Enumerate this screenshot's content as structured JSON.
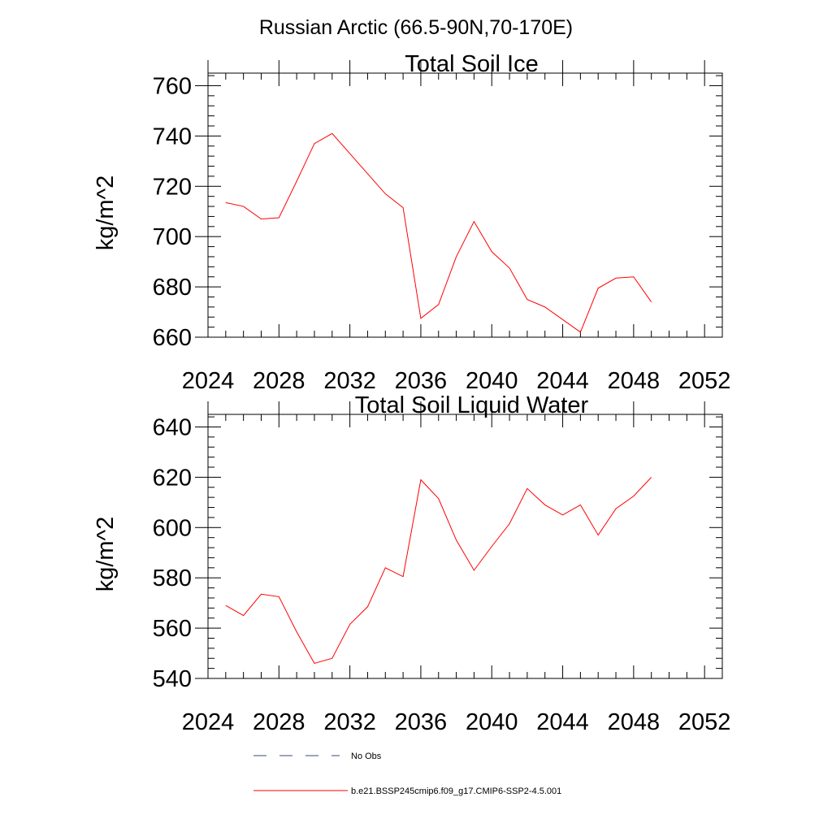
{
  "figure": {
    "title": "Russian Arctic (66.5-90N,70-170E)"
  },
  "colors": {
    "series_line": "#ff0000",
    "obs_line": "#3a4a7a",
    "axis": "#000000",
    "background": "#ffffff"
  },
  "chart_data": [
    {
      "type": "line",
      "title": "Total Soil Ice",
      "xlabel": "",
      "ylabel": "kg/m^2",
      "xlim": [
        2024,
        2053
      ],
      "ylim": [
        660,
        765
      ],
      "x_ticks": [
        2024,
        2028,
        2032,
        2036,
        2040,
        2044,
        2048,
        2052
      ],
      "y_ticks": [
        660,
        680,
        700,
        720,
        740,
        760
      ],
      "grid": false,
      "series": [
        {
          "name": "b.e21.BSSP245cmip6.f09_g17.CMIP6-SSP2-4.5.001",
          "x": [
            2025,
            2026,
            2027,
            2028,
            2029,
            2030,
            2031,
            2032,
            2033,
            2034,
            2035,
            2036,
            2037,
            2038,
            2039,
            2040,
            2041,
            2042,
            2043,
            2044,
            2045,
            2046,
            2047,
            2048,
            2049
          ],
          "values": [
            713.5,
            712,
            707,
            707.5,
            722,
            737,
            741,
            733,
            725,
            717,
            711.5,
            667.5,
            673,
            692,
            706,
            694,
            687.5,
            675,
            672,
            667,
            662,
            679.5,
            683.5,
            684,
            674
          ]
        }
      ]
    },
    {
      "type": "line",
      "title": "Total Soil Liquid Water",
      "xlabel": "",
      "ylabel": "kg/m^2",
      "xlim": [
        2024,
        2053
      ],
      "ylim": [
        540,
        645
      ],
      "x_ticks": [
        2024,
        2028,
        2032,
        2036,
        2040,
        2044,
        2048,
        2052
      ],
      "y_ticks": [
        540,
        560,
        580,
        600,
        620,
        640
      ],
      "grid": false,
      "series": [
        {
          "name": "b.e21.BSSP245cmip6.f09_g17.CMIP6-SSP2-4.5.001",
          "x": [
            2025,
            2026,
            2027,
            2028,
            2029,
            2030,
            2031,
            2032,
            2033,
            2034,
            2035,
            2036,
            2037,
            2038,
            2039,
            2040,
            2041,
            2042,
            2043,
            2044,
            2045,
            2046,
            2047,
            2048,
            2049
          ],
          "values": [
            569,
            565,
            573.5,
            572.5,
            558.5,
            546,
            548,
            561.5,
            568.5,
            584,
            580.5,
            619,
            611.5,
            595,
            583,
            592.5,
            601.5,
            615.5,
            609,
            605,
            609,
            597,
            607.5,
            612.5,
            620
          ]
        }
      ]
    }
  ],
  "legend": {
    "placement": "bottom",
    "entries": [
      {
        "label": "No Obs",
        "style": "dashed"
      },
      {
        "label": "b.e21.BSSP245cmip6.f09_g17.CMIP6-SSP2-4.5.001",
        "style": "solid"
      }
    ]
  }
}
